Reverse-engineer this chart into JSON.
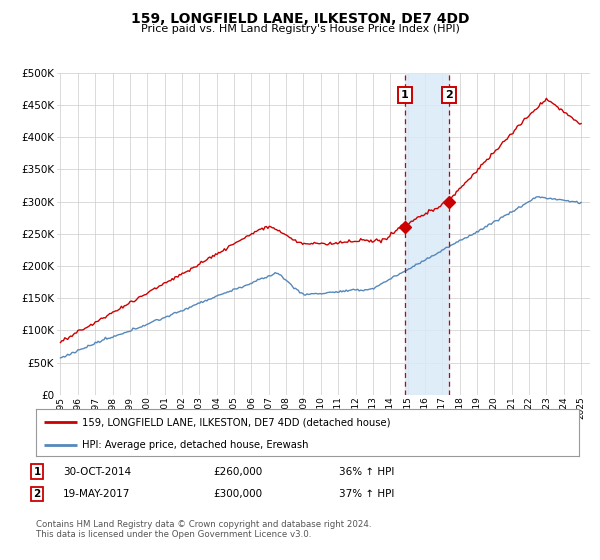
{
  "title": "159, LONGFIELD LANE, ILKESTON, DE7 4DD",
  "subtitle": "Price paid vs. HM Land Registry's House Price Index (HPI)",
  "ylim": [
    0,
    500000
  ],
  "yticks": [
    0,
    50000,
    100000,
    150000,
    200000,
    250000,
    300000,
    350000,
    400000,
    450000,
    500000
  ],
  "ytick_labels": [
    "£0",
    "£50K",
    "£100K",
    "£150K",
    "£200K",
    "£250K",
    "£300K",
    "£350K",
    "£400K",
    "£450K",
    "£500K"
  ],
  "hpi_color": "#5588bb",
  "price_color": "#cc0000",
  "sale1_date_num": 2014.83,
  "sale1_price": 260000,
  "sale1_label": "1",
  "sale2_date_num": 2017.38,
  "sale2_price": 300000,
  "sale2_label": "2",
  "legend_line1": "159, LONGFIELD LANE, ILKESTON, DE7 4DD (detached house)",
  "legend_line2": "HPI: Average price, detached house, Erewash",
  "table_row1_num": "1",
  "table_row1_date": "30-OCT-2014",
  "table_row1_price": "£260,000",
  "table_row1_hpi": "36% ↑ HPI",
  "table_row2_num": "2",
  "table_row2_date": "19-MAY-2017",
  "table_row2_price": "£300,000",
  "table_row2_hpi": "37% ↑ HPI",
  "footnote": "Contains HM Land Registry data © Crown copyright and database right 2024.\nThis data is licensed under the Open Government Licence v3.0.",
  "background_color": "#ffffff",
  "grid_color": "#cccccc",
  "shade_color": "#daeaf7"
}
